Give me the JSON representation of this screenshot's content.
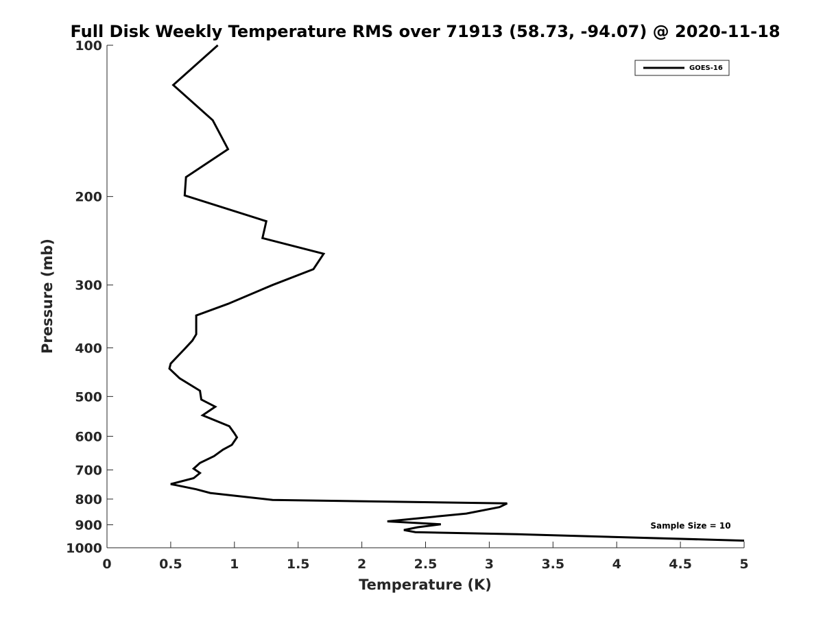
{
  "chart_data": {
    "type": "line",
    "title": "Full Disk Weekly Temperature RMS over 71913 (58.73, -94.07) @ 2020-11-18",
    "xlabel": "Temperature (K)",
    "ylabel": "Pressure (mb)",
    "xlim": [
      0,
      5
    ],
    "ylim": [
      100,
      1000
    ],
    "yscale": "log",
    "y_reversed": true,
    "grid": false,
    "legend_position": "top-right",
    "x_ticks": [
      "0",
      "0.5",
      "1",
      "1.5",
      "2",
      "2.5",
      "3",
      "3.5",
      "4",
      "4.5",
      "5"
    ],
    "y_ticks": [
      "100",
      "200",
      "300",
      "400",
      "500",
      "600",
      "700",
      "800",
      "900",
      "1000"
    ],
    "series": [
      {
        "name": "GOES-16",
        "color": "#000000",
        "points": [
          [
            0.87,
            100
          ],
          [
            0.52,
            120
          ],
          [
            0.83,
            141
          ],
          [
            0.95,
            161
          ],
          [
            0.62,
            183
          ],
          [
            0.61,
            199
          ],
          [
            1.25,
            224
          ],
          [
            1.22,
            242
          ],
          [
            1.7,
            260
          ],
          [
            1.62,
            279
          ],
          [
            1.3,
            300
          ],
          [
            0.95,
            327
          ],
          [
            0.7,
            345
          ],
          [
            0.7,
            376
          ],
          [
            0.67,
            387
          ],
          [
            0.61,
            402
          ],
          [
            0.5,
            430
          ],
          [
            0.49,
            440
          ],
          [
            0.57,
            460
          ],
          [
            0.73,
            487
          ],
          [
            0.74,
            507
          ],
          [
            0.85,
            524
          ],
          [
            0.75,
            545
          ],
          [
            0.96,
            573
          ],
          [
            1.0,
            592
          ],
          [
            1.02,
            603
          ],
          [
            0.98,
            624
          ],
          [
            0.91,
            638
          ],
          [
            0.84,
            657
          ],
          [
            0.73,
            678
          ],
          [
            0.68,
            696
          ],
          [
            0.73,
            710
          ],
          [
            0.68,
            727
          ],
          [
            0.5,
            747
          ],
          [
            0.7,
            765
          ],
          [
            0.81,
            778
          ],
          [
            1.3,
            803
          ],
          [
            3.14,
            816
          ],
          [
            3.08,
            830
          ],
          [
            2.82,
            855
          ],
          [
            2.2,
            886
          ],
          [
            2.62,
            898
          ],
          [
            2.44,
            910
          ],
          [
            2.33,
            922
          ],
          [
            2.42,
            931
          ],
          [
            3.22,
            940
          ],
          [
            5.0,
            968
          ]
        ]
      }
    ],
    "annotations": [
      "Sample Size = 10"
    ]
  }
}
